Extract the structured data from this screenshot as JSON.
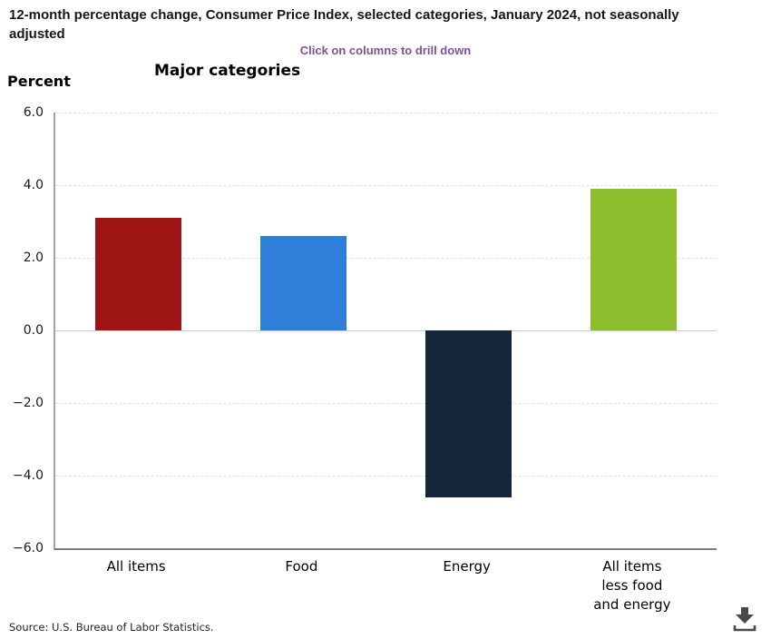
{
  "page": {
    "title": "12-month percentage change, Consumer Price Index, selected categories, January 2024, not seasonally adjusted",
    "drilldown_hint": "Click on columns to drill down",
    "source": "Source: U.S. Bureau of Labor Statistics."
  },
  "colors": {
    "drilldown_hint": "#7b519c",
    "axis_line": "#a3a3a3",
    "x_axis_line": "#7d7d7d",
    "grid_line": "#e2e2e2",
    "zero_line": "#cccccc",
    "download_icon": "#4a4a4a"
  },
  "icons": {
    "download": "download-icon"
  },
  "chart_data": {
    "type": "bar",
    "title": "Major categories",
    "ylabel": "Percent",
    "categories": [
      "All items",
      "Food",
      "Energy",
      "All items less food and energy"
    ],
    "category_label_lines": [
      [
        "All items"
      ],
      [
        "Food"
      ],
      [
        "Energy"
      ],
      [
        "All items",
        "less food",
        "and energy"
      ]
    ],
    "values": [
      3.1,
      2.6,
      -4.6,
      3.9
    ],
    "bar_colors": [
      "#9e1414",
      "#2f7ed8",
      "#13263a",
      "#8dbe2e"
    ],
    "ylim": [
      -6.0,
      6.0
    ],
    "ytick_interval": 2.0,
    "ytick_labels": [
      "6.0",
      "4.0",
      "2.0",
      "0.0",
      "−2.0",
      "−4.0",
      "−6.0"
    ],
    "grid": "horizontal-dashed",
    "legend": "none"
  }
}
